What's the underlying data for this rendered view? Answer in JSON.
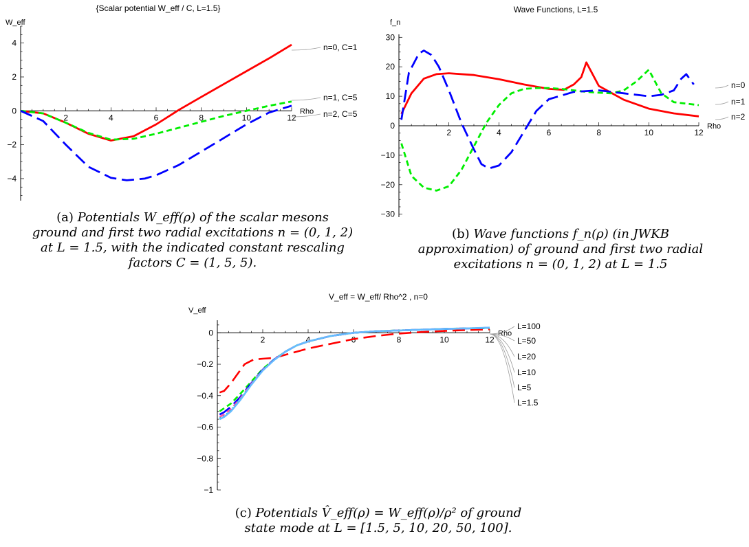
{
  "chart_data": [
    {
      "id": "a",
      "type": "line",
      "title": "{Scalar  potential  W_eff / C, L=1.5}",
      "ylabel": "W_eff",
      "xlabel": "Rho",
      "xlim": [
        0,
        12
      ],
      "ylim": [
        -5.3,
        5.0
      ],
      "xticks": [
        2,
        4,
        6,
        8,
        10,
        12
      ],
      "yticks": [
        -4,
        -2,
        0,
        2,
        4
      ],
      "series": [
        {
          "name": "n=0, C=1",
          "color": "#ff0000",
          "dash": "solid",
          "x": [
            0,
            1,
            2,
            3,
            4,
            5,
            6,
            7,
            8,
            9,
            10,
            11,
            12
          ],
          "y": [
            0,
            -0.15,
            -0.7,
            -1.35,
            -1.75,
            -1.5,
            -0.8,
            0.05,
            0.82,
            1.58,
            2.34,
            3.1,
            3.9
          ]
        },
        {
          "name": "n=1, C=5",
          "color": "#00ee00",
          "dash": "short",
          "x": [
            0,
            1,
            2,
            3,
            4,
            5,
            6,
            7,
            8,
            9,
            10,
            11,
            12
          ],
          "y": [
            0,
            -0.15,
            -0.7,
            -1.3,
            -1.7,
            -1.65,
            -1.35,
            -1.0,
            -0.65,
            -0.3,
            0.0,
            0.3,
            0.55
          ]
        },
        {
          "name": "n=2, C=5",
          "color": "#0000ff",
          "dash": "long",
          "x": [
            0,
            1,
            2,
            3,
            4,
            4.7,
            5.5,
            6,
            7,
            8,
            9,
            10,
            11,
            12
          ],
          "y": [
            0,
            -0.6,
            -2.0,
            -3.3,
            -3.95,
            -4.1,
            -4.0,
            -3.8,
            -3.2,
            -2.4,
            -1.6,
            -0.8,
            -0.1,
            0.3
          ]
        }
      ],
      "legend": "right, at line ends"
    },
    {
      "id": "b",
      "type": "line",
      "title": "Wave Functions, L=1.5",
      "ylabel": "f_n",
      "xlabel": "Rho",
      "xlim": [
        0,
        12
      ],
      "ylim": [
        -31,
        31
      ],
      "xticks": [
        2,
        4,
        6,
        8,
        10,
        12
      ],
      "yticks": [
        -30,
        -20,
        -10,
        0,
        10,
        20,
        30
      ],
      "series": [
        {
          "name": "n=0",
          "color": "#ff0000",
          "dash": "solid",
          "x": [
            0.1,
            0.5,
            1,
            1.5,
            2,
            3,
            4,
            5,
            6,
            6.6,
            7,
            7.3,
            7.5,
            8,
            9,
            10,
            11,
            12
          ],
          "y": [
            4,
            11,
            16,
            17.5,
            17.8,
            17.2,
            15.8,
            14,
            12.5,
            12.2,
            14,
            16.5,
            21.5,
            13.5,
            8.8,
            5.8,
            4.2,
            3.2
          ]
        },
        {
          "name": "n=1",
          "color": "#00ee00",
          "dash": "short",
          "x": [
            0.1,
            0.5,
            1,
            1.5,
            2,
            2.5,
            3,
            3.5,
            4,
            4.5,
            5,
            5.5,
            6,
            6.5,
            7,
            7.5,
            8,
            8.5,
            9,
            9.5,
            10,
            10.5,
            11,
            11.5,
            12
          ],
          "y": [
            -6,
            -17,
            -21,
            -22,
            -20.5,
            -15,
            -7,
            1,
            7,
            11,
            12.5,
            12.8,
            12.8,
            12.5,
            12,
            11.5,
            11.2,
            11,
            12,
            15,
            19,
            11,
            8,
            7.5,
            7
          ]
        },
        {
          "name": "n=2",
          "color": "#0000ff",
          "dash": "long",
          "x": [
            0.1,
            0.4,
            0.8,
            1.0,
            1.3,
            1.6,
            2.0,
            2.5,
            3.0,
            3.3,
            3.6,
            4.0,
            4.5,
            5.0,
            5.5,
            6.0,
            7.0,
            8.0,
            9.0,
            10.0,
            10.5,
            11.0,
            11.3,
            11.5,
            11.8
          ],
          "y": [
            2,
            18,
            24.5,
            25.5,
            24,
            20,
            12,
            1,
            -8,
            -13,
            -14.5,
            -13.5,
            -9,
            -2,
            5,
            9,
            11.5,
            12,
            11,
            10,
            10.5,
            12,
            16,
            17.5,
            14
          ]
        }
      ],
      "legend": "right, at line ends"
    },
    {
      "id": "c",
      "type": "line",
      "title": "V_eff = W_eff/ Rho^2 , n=0",
      "ylabel": "V_eff",
      "xlabel": "Rho",
      "xlim": [
        0,
        12
      ],
      "ylim": [
        -1.0,
        0.08
      ],
      "xticks": [
        2,
        4,
        6,
        8,
        10,
        12
      ],
      "yticks": [
        -1.0,
        -0.8,
        -0.6,
        -0.4,
        -0.2,
        0.0
      ],
      "series": [
        {
          "name": "L=1.5",
          "color": "#ff0000",
          "dash": "long",
          "x": [
            0.1,
            0.3,
            0.6,
            0.9,
            1.2,
            1.6,
            2.0,
            2.5,
            3.0,
            3.5,
            4.0,
            4.5,
            5.0,
            5.5,
            6.0,
            6.5,
            7.0,
            8.0,
            9.0,
            10.0,
            11.0,
            12.0
          ],
          "y": [
            -0.38,
            -0.37,
            -0.32,
            -0.26,
            -0.2,
            -0.17,
            -0.165,
            -0.16,
            -0.14,
            -0.12,
            -0.1,
            -0.085,
            -0.07,
            -0.055,
            -0.04,
            -0.03,
            -0.02,
            -0.005,
            0.005,
            0.012,
            0.018,
            0.022
          ]
        },
        {
          "name": "L=5",
          "color": "#00ee00",
          "dash": "short",
          "x": [
            0.1,
            0.3,
            0.6,
            1.0,
            1.5,
            2.0,
            2.5,
            3.0,
            3.5,
            4.0,
            5.0,
            6.0,
            7.0,
            8.0,
            9.0,
            10.0,
            11.0,
            12.0
          ],
          "y": [
            -0.5,
            -0.48,
            -0.45,
            -0.39,
            -0.31,
            -0.23,
            -0.17,
            -0.12,
            -0.08,
            -0.055,
            -0.02,
            0.0,
            0.01,
            0.015,
            0.02,
            0.025,
            0.028,
            0.03
          ]
        },
        {
          "name": "L=10",
          "color": "#0000ff",
          "dash": "long",
          "x": [
            0.1,
            0.3,
            0.6,
            1.0,
            1.5,
            2.0,
            2.5,
            3.0,
            3.5,
            4.0,
            5.0,
            6.0,
            7.0,
            8.0,
            9.0,
            10.0,
            11.0,
            12.0
          ],
          "y": [
            -0.52,
            -0.505,
            -0.47,
            -0.41,
            -0.32,
            -0.235,
            -0.17,
            -0.12,
            -0.08,
            -0.055,
            -0.02,
            0.0,
            0.01,
            0.015,
            0.02,
            0.025,
            0.028,
            0.032
          ]
        },
        {
          "name": "L=20",
          "color": "#ff55aa",
          "dash": "short",
          "x": [
            0.1,
            0.3,
            0.6,
            1.0,
            1.5,
            2.0,
            2.5,
            3.0,
            3.5,
            4.0,
            5.0,
            6.0,
            7.0,
            8.0,
            9.0,
            10.0,
            11.0,
            12.0
          ],
          "y": [
            -0.535,
            -0.52,
            -0.485,
            -0.42,
            -0.325,
            -0.238,
            -0.172,
            -0.12,
            -0.08,
            -0.055,
            -0.02,
            0.0,
            0.01,
            0.015,
            0.02,
            0.025,
            0.028,
            0.032
          ]
        },
        {
          "name": "L=50",
          "color": "#00cccc",
          "dash": "dotted",
          "x": [
            0.1,
            0.3,
            0.6,
            1.0,
            1.5,
            2.0,
            2.5,
            3.0,
            3.5,
            4.0,
            5.0,
            6.0,
            7.0,
            8.0,
            9.0,
            10.0,
            11.0,
            12.0
          ],
          "y": [
            -0.545,
            -0.53,
            -0.495,
            -0.425,
            -0.328,
            -0.24,
            -0.173,
            -0.12,
            -0.08,
            -0.055,
            -0.02,
            0.0,
            0.01,
            0.015,
            0.02,
            0.025,
            0.028,
            0.032
          ]
        },
        {
          "name": "L=100",
          "color": "#66bbff",
          "dash": "solid",
          "x": [
            0.1,
            0.3,
            0.6,
            1.0,
            1.5,
            2.0,
            2.5,
            3.0,
            3.5,
            4.0,
            5.0,
            6.0,
            7.0,
            8.0,
            9.0,
            10.0,
            11.0,
            12.0
          ],
          "y": [
            -0.55,
            -0.535,
            -0.5,
            -0.43,
            -0.33,
            -0.24,
            -0.173,
            -0.12,
            -0.08,
            -0.055,
            -0.02,
            0.0,
            0.01,
            0.015,
            0.02,
            0.025,
            0.028,
            0.033
          ]
        }
      ],
      "legend": "right, fanned labels"
    }
  ],
  "captions": {
    "a": {
      "prefix": "(a) ",
      "lines": [
        "Potentials W_eff(ρ) of the scalar mesons",
        "ground and first two radial excitations n = (0, 1, 2)",
        "at L = 1.5, with the indicated constant rescaling",
        "factors C = (1, 5, 5)."
      ]
    },
    "b": {
      "prefix": "(b) ",
      "lines": [
        "Wave functions f_n(ρ) (in JWKB",
        "approximation) of ground and first two radial",
        "excitations n = (0, 1, 2)  at L = 1.5"
      ]
    },
    "c": {
      "prefix": "(c) ",
      "lines": [
        "Potentials V̂_eff(ρ) = W_eff(ρ)/ρ² of ground",
        "state mode at L = [1.5, 5, 10, 20, 50, 100]."
      ]
    }
  }
}
